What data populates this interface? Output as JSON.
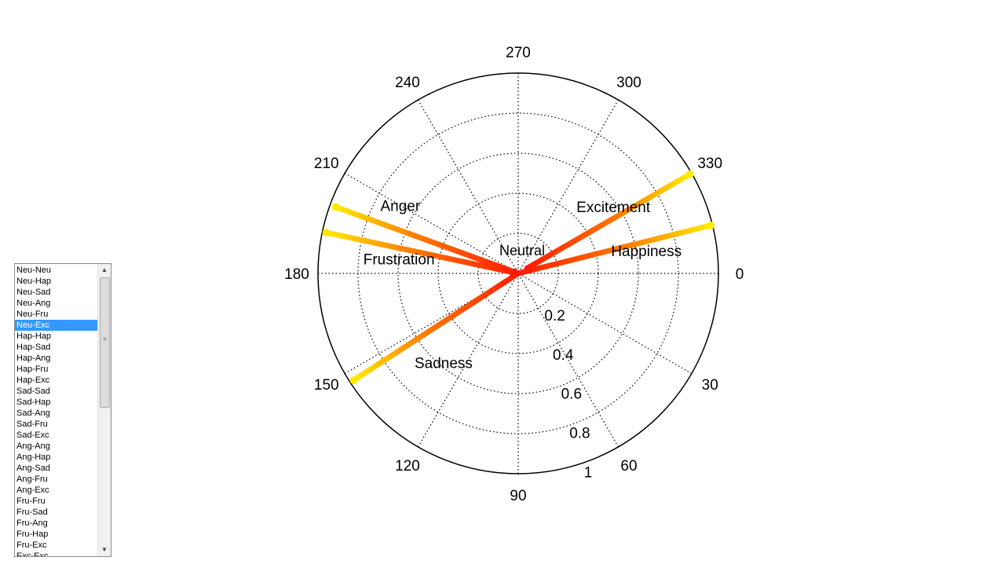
{
  "list": {
    "items": [
      "Neu-Neu",
      "Neu-Hap",
      "Neu-Sad",
      "Neu-Ang",
      "Neu-Fru",
      "Neu-Exc",
      "Hap-Hap",
      "Hap-Sad",
      "Hap-Ang",
      "Hap-Fru",
      "Hap-Exc",
      "Sad-Sad",
      "Sad-Hap",
      "Sad-Ang",
      "Sad-Fru",
      "Sad-Exc",
      "Ang-Ang",
      "Ang-Hap",
      "Ang-Sad",
      "Ang-Fru",
      "Ang-Exc",
      "Fru-Fru",
      "Fru-Sad",
      "Fru-Ang",
      "Fru-Hap",
      "Fru-Exc",
      "Exc-Exc"
    ],
    "selected_index": 5
  },
  "chart_data": {
    "type": "polar",
    "angle_labels": [
      "0",
      "30",
      "60",
      "90",
      "120",
      "150",
      "180",
      "210",
      "240",
      "270",
      "300",
      "330"
    ],
    "radial_labels": [
      "0.2",
      "0.4",
      "0.6",
      "0.8",
      "1"
    ],
    "radial_ticks": [
      0.2,
      0.4,
      0.6,
      0.8,
      1.0
    ],
    "rlim": [
      0,
      1
    ],
    "angle_direction": "clockwise",
    "zero_position": "right",
    "origin_label": "Neutral",
    "emotions": [
      {
        "name": "Happiness",
        "label_angle": 350,
        "label_r": 0.65
      },
      {
        "name": "Excitement",
        "label_angle": 325,
        "label_r": 0.58
      },
      {
        "name": "Anger",
        "label_angle": 210,
        "label_r": 0.68
      },
      {
        "name": "Frustration",
        "label_angle": 187,
        "label_r": 0.6
      },
      {
        "name": "Sadness",
        "label_angle": 130,
        "label_r": 0.58
      }
    ],
    "trajectories": [
      {
        "start": [
          0.0,
          0
        ],
        "end": [
          0.99,
          346
        ]
      },
      {
        "start": [
          0.05,
          330
        ],
        "end": [
          0.99,
          330
        ]
      },
      {
        "start": [
          0.0,
          0
        ],
        "end": [
          0.97,
          200
        ]
      },
      {
        "start": [
          0.0,
          0
        ],
        "end": [
          0.98,
          192
        ]
      },
      {
        "start": [
          0.0,
          0
        ],
        "end": [
          0.98,
          147
        ]
      }
    ],
    "colormap": [
      "#ff1a00",
      "#ffeb00"
    ]
  }
}
